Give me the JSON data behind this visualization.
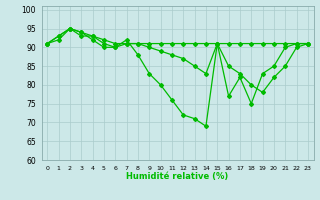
{
  "xlabel": "Humidité relative (%)",
  "background_color": "#cce8e8",
  "grid_color": "#aacccc",
  "line_color": "#00bb00",
  "marker": "D",
  "markersize": 2,
  "linewidth": 0.9,
  "xlim": [
    -0.5,
    23.5
  ],
  "ylim": [
    60,
    101
  ],
  "yticks": [
    60,
    65,
    70,
    75,
    80,
    85,
    90,
    95,
    100
  ],
  "xtick_labels": [
    "0",
    "1",
    "2",
    "3",
    "4",
    "5",
    "6",
    "7",
    "8",
    "9",
    "10",
    "11",
    "12",
    "13",
    "14",
    "15",
    "16",
    "17",
    "18",
    "19",
    "20",
    "21",
    "22",
    "23"
  ],
  "series": [
    [
      91,
      93,
      95,
      94,
      92,
      90,
      90,
      92,
      88,
      83,
      80,
      76,
      72,
      71,
      69,
      91,
      77,
      82,
      75,
      83,
      85,
      90,
      91,
      91
    ],
    [
      91,
      92,
      95,
      93,
      93,
      91,
      90,
      91,
      91,
      90,
      89,
      88,
      87,
      85,
      83,
      91,
      85,
      83,
      80,
      78,
      82,
      85,
      90,
      91
    ],
    [
      91,
      93,
      95,
      94,
      93,
      92,
      91,
      91,
      91,
      91,
      91,
      91,
      91,
      91,
      91,
      91,
      91,
      91,
      91,
      91,
      91,
      91,
      91,
      91
    ]
  ]
}
